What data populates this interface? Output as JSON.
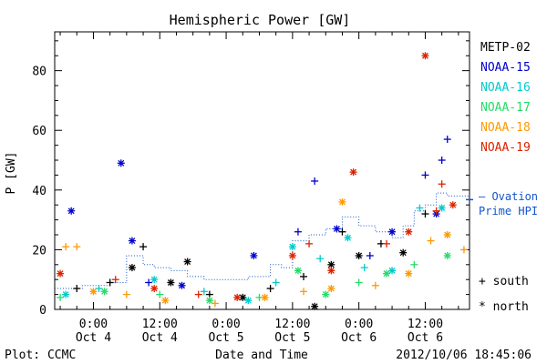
{
  "chart_data": {
    "type": "scatter",
    "title": "Hemispheric Power [GW]",
    "ylabel": "P [GW]",
    "xlabel": "Date and Time",
    "ylim": [
      0,
      93
    ],
    "yticks": [
      0,
      20,
      40,
      60,
      80
    ],
    "x_range": [
      "2012-10-03T17:00",
      "2012-10-06T20:00"
    ],
    "x_ticks": [
      {
        "time": "2012-10-04T00:00",
        "line1": "0:00",
        "line2": "Oct 4"
      },
      {
        "time": "2012-10-04T12:00",
        "line1": "12:00",
        "line2": "Oct 4"
      },
      {
        "time": "2012-10-05T00:00",
        "line1": "0:00",
        "line2": "Oct 5"
      },
      {
        "time": "2012-10-05T12:00",
        "line1": "12:00",
        "line2": "Oct 5"
      },
      {
        "time": "2012-10-06T00:00",
        "line1": "0:00",
        "line2": "Oct 6"
      },
      {
        "time": "2012-10-06T12:00",
        "line1": "12:00",
        "line2": "Oct 6"
      }
    ],
    "series": [
      {
        "name": "METP-02",
        "color": "#000000",
        "points": [
          [
            "2012-10-03T21:00",
            7,
            "s"
          ],
          [
            "2012-10-04T03:00",
            9,
            "s"
          ],
          [
            "2012-10-04T07:00",
            14,
            "n"
          ],
          [
            "2012-10-04T09:00",
            21,
            "s"
          ],
          [
            "2012-10-04T14:00",
            9,
            "n"
          ],
          [
            "2012-10-04T17:00",
            16,
            "n"
          ],
          [
            "2012-10-04T21:00",
            5,
            "s"
          ],
          [
            "2012-10-05T03:00",
            4,
            "n"
          ],
          [
            "2012-10-05T08:00",
            7,
            "s"
          ],
          [
            "2012-10-05T14:00",
            11,
            "s"
          ],
          [
            "2012-10-05T16:00",
            1,
            "n"
          ],
          [
            "2012-10-05T19:00",
            15,
            "n"
          ],
          [
            "2012-10-05T21:00",
            26,
            "s"
          ],
          [
            "2012-10-06T00:00",
            18,
            "n"
          ],
          [
            "2012-10-06T04:00",
            22,
            "s"
          ],
          [
            "2012-10-06T08:00",
            19,
            "n"
          ],
          [
            "2012-10-06T12:00",
            32,
            "s"
          ]
        ]
      },
      {
        "name": "NOAA-15",
        "color": "#0000cc",
        "points": [
          [
            "2012-10-03T20:00",
            33,
            "n"
          ],
          [
            "2012-10-04T05:00",
            49,
            "n"
          ],
          [
            "2012-10-04T07:00",
            23,
            "n"
          ],
          [
            "2012-10-04T10:00",
            9,
            "s"
          ],
          [
            "2012-10-04T16:00",
            8,
            "n"
          ],
          [
            "2012-10-05T05:00",
            18,
            "n"
          ],
          [
            "2012-10-05T13:00",
            26,
            "s"
          ],
          [
            "2012-10-05T16:00",
            43,
            "s"
          ],
          [
            "2012-10-05T20:00",
            27,
            "n"
          ],
          [
            "2012-10-06T02:00",
            18,
            "s"
          ],
          [
            "2012-10-06T06:00",
            26,
            "n"
          ],
          [
            "2012-10-06T12:00",
            45,
            "s"
          ],
          [
            "2012-10-06T14:00",
            32,
            "n"
          ],
          [
            "2012-10-06T15:00",
            50,
            "s"
          ],
          [
            "2012-10-06T16:00",
            57,
            "s"
          ]
        ]
      },
      {
        "name": "NOAA-16",
        "color": "#00cccc",
        "points": [
          [
            "2012-10-03T19:00",
            5,
            "n"
          ],
          [
            "2012-10-04T01:00",
            7,
            "s"
          ],
          [
            "2012-10-04T11:00",
            10,
            "n"
          ],
          [
            "2012-10-04T20:00",
            6,
            "s"
          ],
          [
            "2012-10-05T04:00",
            3,
            "n"
          ],
          [
            "2012-10-05T09:00",
            9,
            "s"
          ],
          [
            "2012-10-05T12:00",
            21,
            "n"
          ],
          [
            "2012-10-05T17:00",
            17,
            "s"
          ],
          [
            "2012-10-05T22:00",
            24,
            "n"
          ],
          [
            "2012-10-06T01:00",
            14,
            "s"
          ],
          [
            "2012-10-06T06:00",
            13,
            "n"
          ],
          [
            "2012-10-06T11:00",
            34,
            "s"
          ],
          [
            "2012-10-06T15:00",
            34,
            "n"
          ]
        ]
      },
      {
        "name": "NOAA-17",
        "color": "#22dd66",
        "points": [
          [
            "2012-10-03T18:00",
            4,
            "s"
          ],
          [
            "2012-10-04T02:00",
            6,
            "n"
          ],
          [
            "2012-10-04T12:00",
            5,
            "s"
          ],
          [
            "2012-10-04T21:00",
            3,
            "n"
          ],
          [
            "2012-10-05T06:00",
            4,
            "s"
          ],
          [
            "2012-10-05T13:00",
            13,
            "n"
          ],
          [
            "2012-10-05T18:00",
            5,
            "n"
          ],
          [
            "2012-10-06T00:00",
            9,
            "s"
          ],
          [
            "2012-10-06T05:00",
            12,
            "n"
          ],
          [
            "2012-10-06T10:00",
            15,
            "s"
          ],
          [
            "2012-10-06T16:00",
            18,
            "n"
          ]
        ]
      },
      {
        "name": "NOAA-18",
        "color": "#ff9900",
        "points": [
          [
            "2012-10-03T19:00",
            21,
            "s"
          ],
          [
            "2012-10-03T21:00",
            21,
            "s"
          ],
          [
            "2012-10-04T00:00",
            6,
            "n"
          ],
          [
            "2012-10-04T06:00",
            5,
            "s"
          ],
          [
            "2012-10-04T13:00",
            3,
            "n"
          ],
          [
            "2012-10-04T22:00",
            2,
            "s"
          ],
          [
            "2012-10-05T07:00",
            4,
            "n"
          ],
          [
            "2012-10-05T14:00",
            6,
            "s"
          ],
          [
            "2012-10-05T19:00",
            7,
            "n"
          ],
          [
            "2012-10-05T21:00",
            36,
            "n"
          ],
          [
            "2012-10-06T03:00",
            8,
            "s"
          ],
          [
            "2012-10-06T09:00",
            12,
            "n"
          ],
          [
            "2012-10-06T13:00",
            23,
            "s"
          ],
          [
            "2012-10-06T16:00",
            25,
            "n"
          ],
          [
            "2012-10-06T19:00",
            20,
            "s"
          ]
        ]
      },
      {
        "name": "NOAA-19",
        "color": "#dd2200",
        "points": [
          [
            "2012-10-03T18:00",
            12,
            "n"
          ],
          [
            "2012-10-04T04:00",
            10,
            "s"
          ],
          [
            "2012-10-04T11:00",
            7,
            "n"
          ],
          [
            "2012-10-04T19:00",
            5,
            "s"
          ],
          [
            "2012-10-05T02:00",
            4,
            "n"
          ],
          [
            "2012-10-05T12:00",
            18,
            "n"
          ],
          [
            "2012-10-05T15:00",
            22,
            "s"
          ],
          [
            "2012-10-05T19:00",
            13,
            "n"
          ],
          [
            "2012-10-05T23:00",
            46,
            "n"
          ],
          [
            "2012-10-06T05:00",
            22,
            "s"
          ],
          [
            "2012-10-06T09:00",
            26,
            "n"
          ],
          [
            "2012-10-06T12:00",
            85,
            "n"
          ],
          [
            "2012-10-06T14:00",
            33,
            "s"
          ],
          [
            "2012-10-06T15:00",
            42,
            "s"
          ],
          [
            "2012-10-06T17:00",
            35,
            "n"
          ]
        ]
      }
    ],
    "ovation_steps": [
      [
        "2012-10-03T17:00",
        7
      ],
      [
        "2012-10-03T22:00",
        8
      ],
      [
        "2012-10-04T03:00",
        9
      ],
      [
        "2012-10-04T06:00",
        18
      ],
      [
        "2012-10-04T09:00",
        15
      ],
      [
        "2012-10-04T11:00",
        14
      ],
      [
        "2012-10-04T14:00",
        13
      ],
      [
        "2012-10-04T17:00",
        11
      ],
      [
        "2012-10-04T20:00",
        10
      ],
      [
        "2012-10-05T00:00",
        10
      ],
      [
        "2012-10-05T04:00",
        11
      ],
      [
        "2012-10-05T06:00",
        11
      ],
      [
        "2012-10-05T08:00",
        15
      ],
      [
        "2012-10-05T10:00",
        14
      ],
      [
        "2012-10-05T12:00",
        23
      ],
      [
        "2012-10-05T15:00",
        25
      ],
      [
        "2012-10-05T18:00",
        27
      ],
      [
        "2012-10-05T21:00",
        31
      ],
      [
        "2012-10-06T00:00",
        28
      ],
      [
        "2012-10-06T03:00",
        26
      ],
      [
        "2012-10-06T06:00",
        24
      ],
      [
        "2012-10-06T08:00",
        28
      ],
      [
        "2012-10-06T10:00",
        33
      ],
      [
        "2012-10-06T12:00",
        35
      ],
      [
        "2012-10-06T14:00",
        39
      ],
      [
        "2012-10-06T16:00",
        38
      ],
      [
        "2012-10-06T18:00",
        38
      ]
    ],
    "ovation_label": [
      "– Ovation",
      "Prime HPI"
    ],
    "ovation_color": "#1155cc",
    "marker_legend": [
      {
        "symbol": "+",
        "label": "south"
      },
      {
        "symbol": "*",
        "label": "north"
      }
    ]
  },
  "footer": {
    "plot_credit": "Plot: CCMC",
    "timestamp": "2012/10/06 18:45:06"
  }
}
